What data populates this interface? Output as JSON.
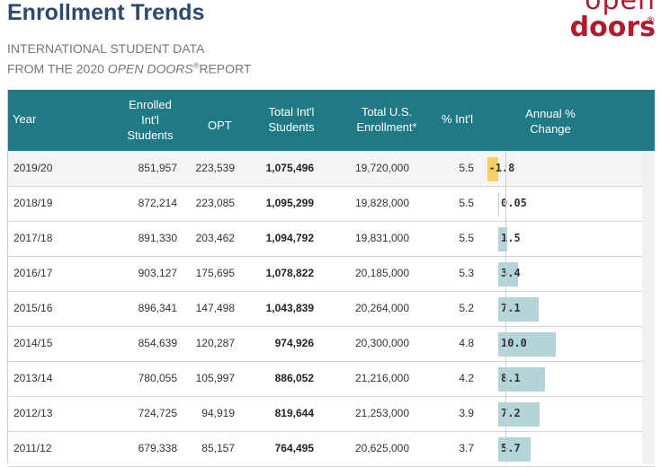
{
  "header": {
    "title": "Enrollment Trends",
    "subtitle_line1": "INTERNATIONAL STUDENT DATA",
    "subtitle_line2_pre": "FROM THE 2020 ",
    "subtitle_line2_italic": "OPEN DOORS",
    "subtitle_line2_reg": "®",
    "subtitle_line2_post": "REPORT"
  },
  "logo": {
    "line1": "open",
    "line2": "doors",
    "reg": "®"
  },
  "table": {
    "columns": {
      "year": "Year",
      "enrolled_1": "Enrolled",
      "enrolled_2": "Int'l",
      "enrolled_3": "Students",
      "opt": "OPT",
      "total_1": "Total Int'l",
      "total_2": "Students",
      "us_1": "Total U.S.",
      "us_2": "Enrollment*",
      "pct": "% Int'l",
      "annual_1": "Annual %",
      "annual_2": "Change"
    },
    "rows": [
      {
        "year": "2019/20",
        "enrolled": "851,957",
        "opt": "223,539",
        "total": "1,075,496",
        "us": "19,720,000",
        "pct": "5.5",
        "change": "-1.8",
        "change_value": -1.8
      },
      {
        "year": "2018/19",
        "enrolled": "872,214",
        "opt": "223,085",
        "total": "1,095,299",
        "us": "19,828,000",
        "pct": "5.5",
        "change": "0.05",
        "change_value": 0.05
      },
      {
        "year": "2017/18",
        "enrolled": "891,330",
        "opt": "203,462",
        "total": "1,094,792",
        "us": "19,831,000",
        "pct": "5.5",
        "change": "1.5",
        "change_value": 1.5
      },
      {
        "year": "2016/17",
        "enrolled": "903,127",
        "opt": "175,695",
        "total": "1,078,822",
        "us": "20,185,000",
        "pct": "5.3",
        "change": "3.4",
        "change_value": 3.4
      },
      {
        "year": "2015/16",
        "enrolled": "896,341",
        "opt": "147,498",
        "total": "1,043,839",
        "us": "20,264,000",
        "pct": "5.2",
        "change": "7.1",
        "change_value": 7.1
      },
      {
        "year": "2014/15",
        "enrolled": "854,639",
        "opt": "120,287",
        "total": "974,926",
        "us": "20,300,000",
        "pct": "4.8",
        "change": "10.0",
        "change_value": 10.0
      },
      {
        "year": "2013/14",
        "enrolled": "780,055",
        "opt": "105,997",
        "total": "886,052",
        "us": "21,216,000",
        "pct": "4.2",
        "change": "8.1",
        "change_value": 8.1
      },
      {
        "year": "2012/13",
        "enrolled": "724,725",
        "opt": "94,919",
        "total": "819,644",
        "us": "21,253,000",
        "pct": "3.9",
        "change": "7.2",
        "change_value": 7.2
      },
      {
        "year": "2011/12",
        "enrolled": "679,338",
        "opt": "85,157",
        "total": "764,495",
        "us": "20,625,000",
        "pct": "3.7",
        "change": "5.7",
        "change_value": 5.7
      }
    ]
  },
  "colors": {
    "header_bg": "#1f7a85",
    "title": "#2c4a6e",
    "logo": "#b01b2e",
    "positive_bar": "#b3d4d9",
    "negative_bar": "#f5cf63"
  }
}
